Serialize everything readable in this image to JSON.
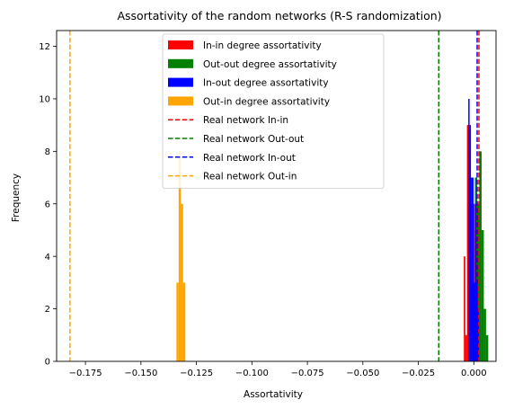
{
  "chart_data": {
    "type": "bar",
    "title": "Assortativity of the random networks (R-S randomization)",
    "xlabel": "Assortativity",
    "ylabel": "Frequency",
    "xlim": [
      -0.188,
      0.01
    ],
    "ylim": [
      0,
      12.6
    ],
    "x_ticks": [
      -0.175,
      -0.15,
      -0.125,
      -0.1,
      -0.075,
      -0.05,
      -0.025,
      0.0
    ],
    "x_tick_labels": [
      "−0.175",
      "−0.150",
      "−0.125",
      "−0.100",
      "−0.075",
      "−0.050",
      "−0.025",
      "0.000"
    ],
    "y_ticks": [
      0,
      2,
      4,
      6,
      8,
      10,
      12
    ],
    "y_tick_labels": [
      "0",
      "2",
      "4",
      "6",
      "8",
      "10",
      "12"
    ],
    "legend_position": "top-center",
    "grid": false,
    "histograms": [
      {
        "name": "In-in degree assortativity",
        "color": "#ff0000",
        "bins": [
          [
            -0.0045,
            -0.0038,
            4
          ],
          [
            -0.0038,
            -0.0031,
            1
          ],
          [
            -0.0031,
            -0.0024,
            9
          ],
          [
            -0.0024,
            -0.0017,
            8
          ],
          [
            -0.0017,
            -0.001,
            6
          ],
          [
            -0.001,
            -0.0003,
            3
          ],
          [
            -0.0003,
            0.0004,
            6
          ],
          [
            0.0004,
            0.0011,
            5
          ],
          [
            0.0011,
            0.0018,
            4
          ],
          [
            0.0018,
            0.0025,
            4
          ]
        ]
      },
      {
        "name": "Out-out degree assortativity",
        "color": "#008000",
        "bins": [
          [
            0.0005,
            0.0015,
            7
          ],
          [
            0.0015,
            0.0025,
            6
          ],
          [
            0.0025,
            0.0035,
            8
          ],
          [
            0.0035,
            0.0045,
            5
          ],
          [
            0.0045,
            0.0055,
            2
          ],
          [
            0.0055,
            0.0065,
            1
          ]
        ]
      },
      {
        "name": "In-out degree assortativity",
        "color": "#0000ff",
        "bins": [
          [
            -0.0025,
            -0.0019,
            10
          ],
          [
            -0.0019,
            -0.0013,
            9
          ],
          [
            -0.0013,
            -0.0007,
            7
          ],
          [
            -0.0007,
            -0.0001,
            7
          ],
          [
            -0.0001,
            0.0005,
            3
          ],
          [
            0.0005,
            0.0011,
            6
          ],
          [
            0.0011,
            0.0017,
            3
          ],
          [
            0.0017,
            0.0023,
            2
          ]
        ]
      },
      {
        "name": "Out-in degree assortativity",
        "color": "#ffa500",
        "bins": [
          [
            -0.134,
            -0.133,
            3
          ],
          [
            -0.133,
            -0.132,
            8
          ],
          [
            -0.132,
            -0.131,
            6
          ],
          [
            -0.131,
            -0.13,
            3
          ]
        ]
      }
    ],
    "reference_lines": [
      {
        "name": "Real network In-in",
        "x": 0.0023,
        "color": "#ff0000"
      },
      {
        "name": "Real network Out-out",
        "x": -0.0158,
        "color": "#008000"
      },
      {
        "name": "Real network In-out",
        "x": 0.0015,
        "color": "#0000ff"
      },
      {
        "name": "Real network Out-in",
        "x": -0.182,
        "color": "#ffa500"
      }
    ]
  }
}
